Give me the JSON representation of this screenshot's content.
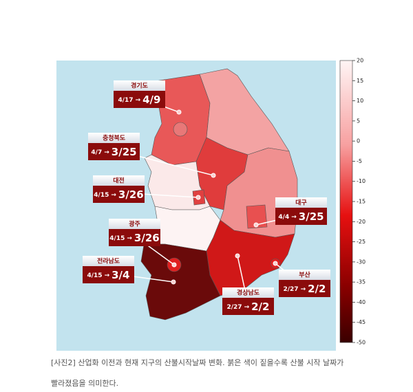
{
  "map": {
    "arrow": "→",
    "regions": [
      {
        "name": "경기도",
        "from": "4/17",
        "to": "4/9"
      },
      {
        "name": "충청북도",
        "from": "4/7",
        "to": "3/25"
      },
      {
        "name": "대전",
        "from": "4/15",
        "to": "3/26"
      },
      {
        "name": "광주",
        "from": "4/15",
        "to": "3/26"
      },
      {
        "name": "전라남도",
        "from": "4/15",
        "to": "3/4"
      },
      {
        "name": "대구",
        "from": "4/4",
        "to": "3/25"
      },
      {
        "name": "부산",
        "from": "2/27",
        "to": "2/2"
      },
      {
        "name": "경상남도",
        "from": "2/27",
        "to": "2/2"
      }
    ],
    "colorbar": {
      "lim": [
        -50,
        20
      ],
      "ticks": [
        20,
        15,
        10,
        5,
        0,
        -5,
        -10,
        -15,
        -20,
        -25,
        -30,
        -35,
        -40,
        -45,
        -50
      ]
    }
  },
  "caption": {
    "lines": [
      "[사진2] 산업화 이전과 현재 지구의 산불시작날짜 변화. 붉은 색이 짙을수록 산불 시작 날짜가",
      "빨라졌음을 의미한다."
    ]
  }
}
